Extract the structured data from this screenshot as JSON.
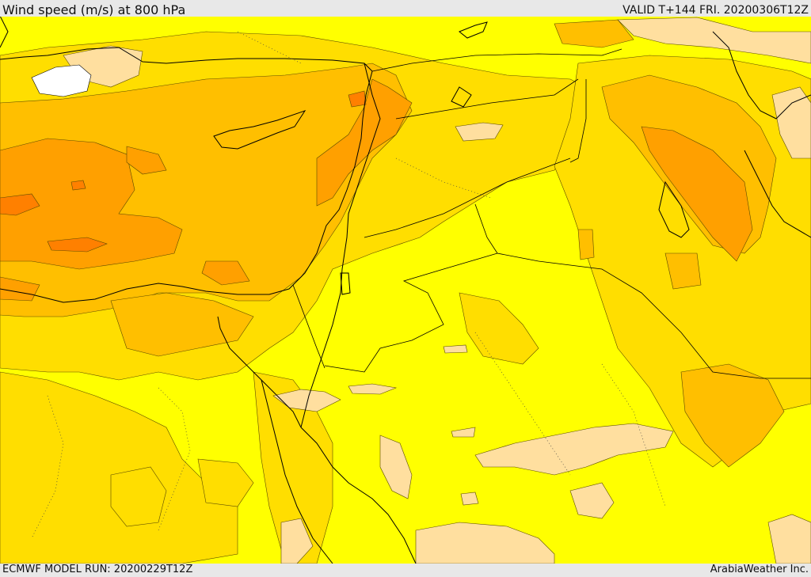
{
  "header": {
    "title": "Wind speed (m/s) at 800 hPa",
    "valid": "VALID T+144 FRI. 20200306T12Z"
  },
  "footer": {
    "model_run": "ECMWF MODEL RUN: 20200229T12Z",
    "credit": "ArabiaWeather Inc."
  },
  "palette": {
    "very_light": "#ffdf9f",
    "light": "#ffff00",
    "moderate": "#ffde00",
    "strong": "#ffbf00",
    "very_strong": "#ffa000",
    "extreme": "#ff8000",
    "water_white": "#ffffff",
    "line": "#000000"
  }
}
